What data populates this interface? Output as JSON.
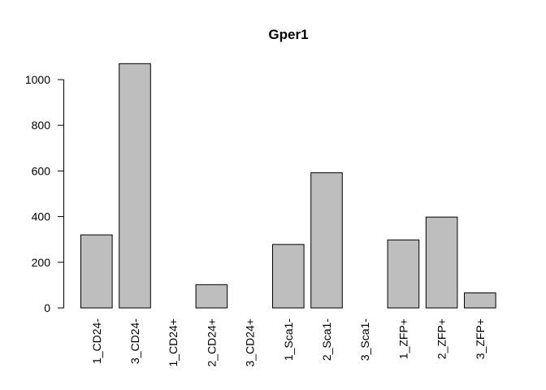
{
  "chart_data": {
    "type": "bar",
    "title": "Gper1",
    "xlabel": "",
    "ylabel": "",
    "categories": [
      "1_CD24-",
      "3_CD24-",
      "1_CD24+",
      "2_CD24+",
      "3_CD24+",
      "1_Sca1-",
      "2_Sca1-",
      "3_Sca1-",
      "1_ZFP+",
      "2_ZFP+",
      "3_ZFP+"
    ],
    "values": [
      320,
      1070,
      0,
      102,
      0,
      278,
      592,
      0,
      298,
      398,
      66
    ],
    "ylim": [
      0,
      1000
    ],
    "yticks": [
      0,
      200,
      400,
      600,
      800,
      1000
    ],
    "bar_color": "#bebebe",
    "grid": false,
    "legend": "none"
  }
}
